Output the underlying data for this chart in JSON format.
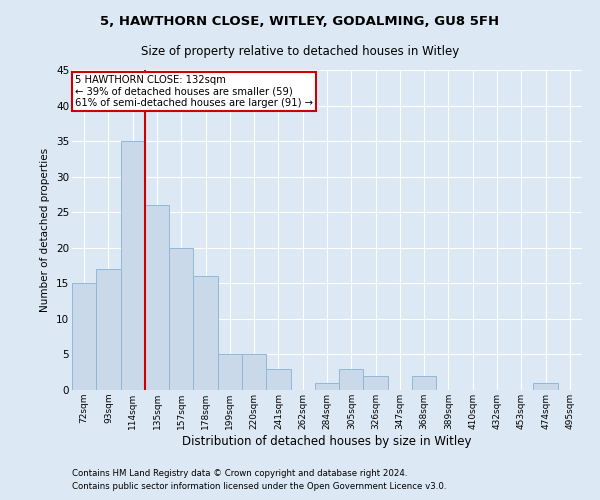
{
  "title1": "5, HAWTHORN CLOSE, WITLEY, GODALMING, GU8 5FH",
  "title2": "Size of property relative to detached houses in Witley",
  "xlabel": "Distribution of detached houses by size in Witley",
  "ylabel": "Number of detached properties",
  "categories": [
    "72sqm",
    "93sqm",
    "114sqm",
    "135sqm",
    "157sqm",
    "178sqm",
    "199sqm",
    "220sqm",
    "241sqm",
    "262sqm",
    "284sqm",
    "305sqm",
    "326sqm",
    "347sqm",
    "368sqm",
    "389sqm",
    "410sqm",
    "432sqm",
    "453sqm",
    "474sqm",
    "495sqm"
  ],
  "values": [
    15,
    17,
    35,
    26,
    20,
    16,
    5,
    5,
    3,
    0,
    1,
    3,
    2,
    0,
    2,
    0,
    0,
    0,
    0,
    1,
    0
  ],
  "bar_color": "#c9d9ea",
  "bar_edge_color": "#8fb8d8",
  "background_color": "#dce9f5",
  "grid_color": "#ffffff",
  "annotation_line1": "5 HAWTHORN CLOSE: 132sqm",
  "annotation_line2": "← 39% of detached houses are smaller (59)",
  "annotation_line3": "61% of semi-detached houses are larger (91) →",
  "annotation_box_color": "#ffffff",
  "annotation_box_edge": "#cc0000",
  "vline_color": "#cc0000",
  "vline_index": 2.5,
  "ylim": [
    0,
    45
  ],
  "yticks": [
    0,
    5,
    10,
    15,
    20,
    25,
    30,
    35,
    40,
    45
  ],
  "footnote1": "Contains HM Land Registry data © Crown copyright and database right 2024.",
  "footnote2": "Contains public sector information licensed under the Open Government Licence v3.0."
}
